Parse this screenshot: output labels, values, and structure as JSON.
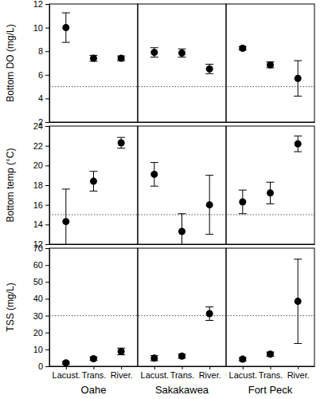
{
  "chart_data": [
    {
      "type": "scatter",
      "y_label": "Bottom DO (mg/L)",
      "ylim": [
        2,
        12
      ],
      "yticks": [
        2,
        4,
        6,
        8,
        10,
        12
      ],
      "reference_line": 5,
      "categories": [
        "Lacust.",
        "Trans.",
        "River."
      ],
      "tick_labels": "y",
      "panels": [
        {
          "values": [
            10.0,
            7.4,
            7.4
          ],
          "errors": [
            1.25,
            0.25,
            0.2
          ]
        },
        {
          "values": [
            7.9,
            7.85,
            6.5
          ],
          "errors": [
            0.4,
            0.35,
            0.4
          ]
        },
        {
          "values": [
            8.25,
            6.85,
            5.7
          ],
          "errors": [
            0.15,
            0.25,
            1.5
          ]
        }
      ]
    },
    {
      "type": "scatter",
      "y_label": "Bottom temp (°C)",
      "ylim": [
        12,
        24
      ],
      "yticks": [
        12,
        14,
        16,
        18,
        20,
        22,
        24
      ],
      "reference_line": 15,
      "categories": [
        "Lacust.",
        "Trans.",
        "River."
      ],
      "tick_labels": "y",
      "panels": [
        {
          "values": [
            14.3,
            18.4,
            22.3
          ],
          "errors": [
            3.3,
            1.0,
            0.55
          ]
        },
        {
          "values": [
            19.1,
            13.3,
            16.0
          ],
          "errors": [
            1.2,
            1.8,
            3.0
          ]
        },
        {
          "values": [
            16.3,
            17.2,
            22.2
          ],
          "errors": [
            1.2,
            1.1,
            0.8
          ]
        }
      ]
    },
    {
      "type": "scatter",
      "y_label": "TSS (mg/L)",
      "ylim": [
        0,
        70
      ],
      "yticks": [
        0,
        10,
        20,
        30,
        40,
        50,
        60,
        70
      ],
      "reference_line": 30,
      "categories": [
        "Lacust.",
        "Trans.",
        "River."
      ],
      "panels": [
        {
          "name": "Oahe",
          "values": [
            2.0,
            4.5,
            8.8
          ],
          "errors": [
            0.8,
            1.0,
            2.0
          ]
        },
        {
          "name": "Sakakawea",
          "values": [
            4.8,
            6.0,
            31.2
          ],
          "errors": [
            1.5,
            1.2,
            4.0
          ]
        },
        {
          "name": "Fort Peck",
          "values": [
            4.2,
            7.2,
            38.5
          ],
          "errors": [
            1.0,
            1.2,
            25.0
          ]
        }
      ]
    }
  ]
}
